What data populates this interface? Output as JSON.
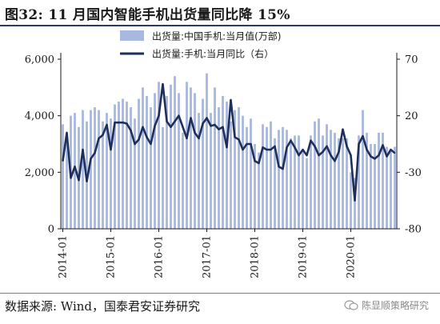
{
  "title": "图32: 11 月国内智能手机出货量同比降 15%",
  "source": "数据来源: Wind，国泰君安证券研究",
  "watermark": "陈显顺策略研究",
  "colors": {
    "bar": "#a8b8de",
    "line": "#1f2f5c",
    "rule": "#2a3b6a"
  },
  "chart_data": {
    "type": "bar+line",
    "title": "",
    "x_ticks": [
      "2014-01",
      "2015-01",
      "2016-01",
      "2017-01",
      "2018-01",
      "2019-01",
      "2020-01"
    ],
    "y_left": {
      "ticks": [
        "0",
        "2,000",
        "4,000",
        "6,000"
      ],
      "min": 0,
      "max": 6000
    },
    "y_right": {
      "ticks": [
        "-80",
        "-30",
        "20",
        "70"
      ],
      "min": -80,
      "max": 70
    },
    "legend_position": "top-center",
    "grid": false,
    "x_start": "2014-01",
    "series": [
      {
        "name": "出货量:中国手机:当月值(万部)",
        "type": "bar",
        "axis": "left",
        "values": [
          3700,
          3300,
          4000,
          4100,
          3600,
          4200,
          3800,
          4200,
          4300,
          4200,
          3800,
          4100,
          3900,
          4400,
          4500,
          4600,
          4500,
          4300,
          3900,
          4600,
          5000,
          4700,
          4300,
          4800,
          5200,
          3600,
          4700,
          5100,
          5400,
          4800,
          3400,
          5200,
          5000,
          4800,
          4100,
          4600,
          5500,
          4100,
          5000,
          4300,
          4700,
          4500,
          3800,
          4200,
          4300,
          4000,
          3600,
          3900,
          3000,
          2700,
          3700,
          3600,
          3800,
          3200,
          3500,
          3600,
          3500,
          3200,
          3300,
          3300,
          2800,
          2500,
          3300,
          3800,
          3900,
          3300,
          3700,
          3500,
          3400,
          3200,
          3200,
          3200,
          2000,
          1800,
          3300,
          4200,
          3400,
          3000,
          3000,
          3400,
          3400,
          2900,
          2800,
          2900
        ]
      },
      {
        "name": "出货量:手机:当月同比（右）",
        "type": "line",
        "axis": "right",
        "values": [
          -20,
          5,
          -35,
          -25,
          -37,
          -10,
          -38,
          -18,
          -13,
          0,
          3,
          12,
          -10,
          14,
          14,
          14,
          13,
          7,
          -5,
          -1,
          10,
          1,
          -5,
          11,
          20,
          48,
          15,
          10,
          15,
          20,
          10,
          0,
          18,
          5,
          0,
          13,
          18,
          11,
          12,
          8,
          10,
          -8,
          34,
          1,
          -1,
          -10,
          -5,
          -5,
          -20,
          -22,
          -8,
          -10,
          -10,
          -7,
          -25,
          -27,
          -8,
          -2,
          -8,
          -15,
          -10,
          -15,
          -2,
          -7,
          -15,
          -12,
          -7,
          -15,
          -20,
          -12,
          8,
          -7,
          -15,
          -55,
          -5,
          2,
          -10,
          -16,
          -18,
          -15,
          -6,
          -16,
          -10,
          -13
        ]
      }
    ]
  }
}
